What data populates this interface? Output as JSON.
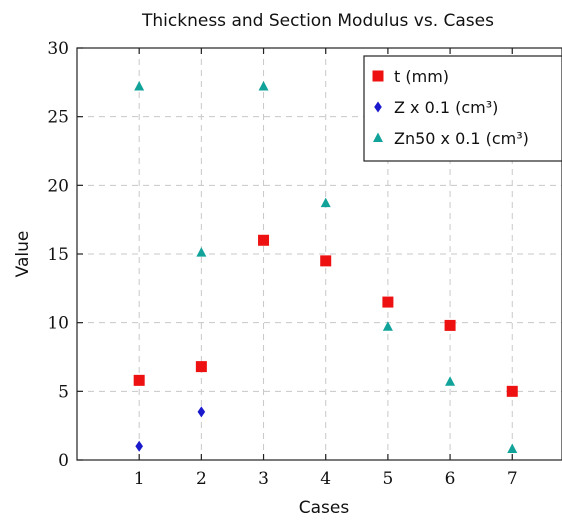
{
  "chart_data": {
    "type": "scatter",
    "title": "Thickness and Section Modulus vs. Cases",
    "xlabel": "Cases",
    "ylabel": "Value",
    "xlim": [
      0,
      7.8
    ],
    "ylim": [
      0,
      30
    ],
    "xticks": [
      1,
      2,
      3,
      4,
      5,
      6,
      7
    ],
    "yticks": [
      0,
      5,
      10,
      15,
      20,
      25,
      30
    ],
    "grid": true,
    "legend_position": "top-right",
    "series": [
      {
        "name": "t (mm)",
        "marker": "square",
        "color": "#ee1111",
        "points": [
          [
            1,
            5.8
          ],
          [
            2,
            6.8
          ],
          [
            3,
            16.0
          ],
          [
            4,
            14.5
          ],
          [
            5,
            11.5
          ],
          [
            6,
            9.8
          ],
          [
            7,
            5.0
          ]
        ]
      },
      {
        "name": "Z x 0.1 (cm³)",
        "marker": "diamond",
        "color": "#1a1acc",
        "points": [
          [
            1,
            1.0
          ],
          [
            2,
            3.5
          ]
        ]
      },
      {
        "name": "Zn50 x 0.1 (cm³)",
        "marker": "triangle",
        "color": "#11a39a",
        "points": [
          [
            1,
            27.2
          ],
          [
            2,
            15.1
          ],
          [
            3,
            27.2
          ],
          [
            4,
            18.7
          ],
          [
            5,
            9.7
          ],
          [
            6,
            5.7
          ],
          [
            7,
            0.8
          ]
        ]
      }
    ]
  }
}
